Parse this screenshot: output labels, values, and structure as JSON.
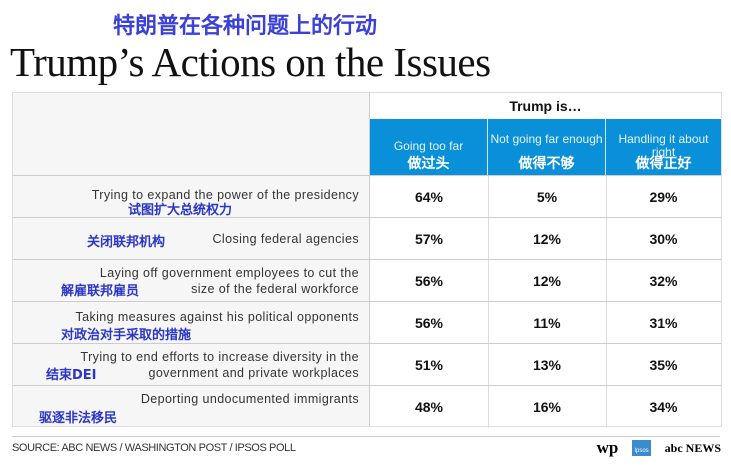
{
  "title_cn": "特朗普在各种问题上的行动",
  "title_en": "Trump’s Actions on the Issues",
  "chart_data": {
    "type": "table",
    "group_header": "Trump is…",
    "columns": [
      {
        "en": "Going too far",
        "cn": "做过头"
      },
      {
        "en": "Not going far enough",
        "cn": "做得不够"
      },
      {
        "en": "Handling it about right",
        "cn": "做得正好"
      }
    ],
    "rows": [
      {
        "label": "Trying to expand the power of the presidency",
        "cn": "试图扩大总统权力",
        "values": [
          "64%",
          "5%",
          "29%"
        ]
      },
      {
        "label": "Closing federal agencies",
        "cn": "关闭联邦机构",
        "values": [
          "57%",
          "12%",
          "30%"
        ]
      },
      {
        "label1": "Laying off government employees to cut the",
        "label2": "size of the federal workforce",
        "cn": "解雇联邦雇员",
        "values": [
          "56%",
          "12%",
          "32%"
        ]
      },
      {
        "label": "Taking measures against his political opponents",
        "cn": "对政治对手采取的措施",
        "values": [
          "56%",
          "11%",
          "31%"
        ]
      },
      {
        "label1": "Trying to end efforts to increase diversity in the",
        "label2": "government and private workplaces",
        "cn": "结束DEI",
        "values": [
          "51%",
          "13%",
          "35%"
        ]
      },
      {
        "label": "Deporting undocumented immigrants",
        "cn": "驱逐非法移民",
        "values": [
          "48%",
          "16%",
          "34%"
        ]
      }
    ],
    "header_color": "#0a90d8"
  },
  "footer": {
    "source": "SOURCE: ABC NEWS / WASHINGTON POST / IPSOS POLL",
    "logos": [
      "wp",
      "Ipsos",
      "abc NEWS"
    ]
  }
}
